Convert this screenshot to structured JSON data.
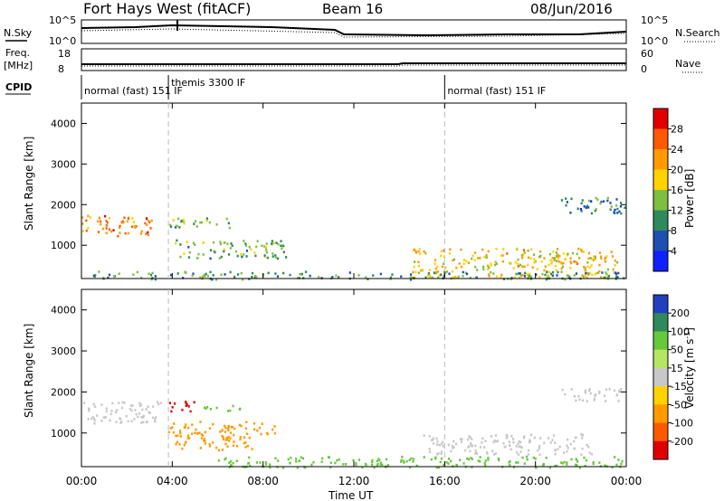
{
  "header": {
    "title": "Fort Hays West (fitACF)",
    "beam": "Beam 16",
    "date": "08/Jun/2016"
  },
  "top_panels": {
    "nsky_label": "N.Sky",
    "nsearch_label": "N.Search",
    "noise_ticks_left": [
      "10^5",
      "10^0"
    ],
    "noise_ticks_right": [
      "10^5",
      "10^0"
    ],
    "freq_label": "Freq.",
    "freq_unit": "[MHz]",
    "freq_ticks": [
      "18",
      "8"
    ],
    "nave_label": "Nave",
    "nave_ticks": [
      "60",
      "0"
    ],
    "cpid_label": "CPID"
  },
  "cpid_segments": [
    {
      "label": "normal (fast) 151 IF",
      "start_hour": 0
    },
    {
      "label": "themis 3300 IF",
      "start_hour": 3.83
    },
    {
      "label": "normal (fast) 151 IF",
      "start_hour": 16
    }
  ],
  "power_panel": {
    "ylabel": "Slant Range [km]",
    "cbar_label": "Power [dB]",
    "cbar_ticks": [
      "28",
      "24",
      "20",
      "16",
      "12",
      "8",
      "4"
    ],
    "cbar_colors": [
      "#e00000",
      "#ff5a00",
      "#ff9a00",
      "#ffd200",
      "#7fbf40",
      "#2e8a5a",
      "#1e4fb4",
      "#1020ff"
    ]
  },
  "velocity_panel": {
    "ylabel": "Slant Range [km]",
    "cbar_label": "Velocity [m s",
    "cbar_label_sup": "-1",
    "cbar_label_end": "]",
    "cbar_ticks": [
      "200",
      "100",
      "50",
      "15",
      "-15",
      "-50",
      "-100",
      "-200"
    ],
    "cbar_colors": [
      "#2040c0",
      "#2e8a5a",
      "#66c83c",
      "#b4e664",
      "#c8c8c8",
      "#ffd200",
      "#ff9a00",
      "#ff5a00",
      "#e00000"
    ]
  },
  "xaxis": {
    "title": "Time UT",
    "ticks": [
      "00:00",
      "04:00",
      "08:00",
      "12:00",
      "16:00",
      "20:00",
      "00:00"
    ]
  },
  "chart_data": [
    {
      "type": "heatmap",
      "title": "Power",
      "xlabel": "Time UT",
      "ylabel": "Slant Range [km]",
      "xlim_hours": [
        0,
        24
      ],
      "ylim": [
        180,
        4500
      ],
      "yticks": [
        1000,
        2000,
        3000,
        4000
      ],
      "colorbar": {
        "label": "Power [dB]",
        "range": [
          0,
          30
        ]
      },
      "regions": [
        {
          "t0": 0.0,
          "t1": 3.2,
          "r0": 1250,
          "r1": 1750,
          "value": 22
        },
        {
          "t0": 3.8,
          "t1": 6.6,
          "r0": 1450,
          "r1": 1700,
          "value": 12
        },
        {
          "t0": 4.1,
          "t1": 9.0,
          "r0": 700,
          "r1": 1150,
          "value": 12
        },
        {
          "t0": 14.5,
          "t1": 23.6,
          "r0": 200,
          "r1": 950,
          "value": 18
        },
        {
          "t0": 0.5,
          "t1": 24,
          "r0": 180,
          "r1": 380,
          "value": 10
        },
        {
          "t0": 21.0,
          "t1": 24,
          "r0": 1800,
          "r1": 2200,
          "value": 8
        }
      ]
    },
    {
      "type": "heatmap",
      "title": "Velocity",
      "xlabel": "Time UT",
      "ylabel": "Slant Range [km]",
      "xlim_hours": [
        0,
        24
      ],
      "ylim": [
        180,
        4500
      ],
      "yticks": [
        1000,
        2000,
        3000,
        4000
      ],
      "colorbar": {
        "label": "Velocity [m s-1]",
        "range": [
          -200,
          200
        ]
      },
      "regions": [
        {
          "t0": 0.0,
          "t1": 3.5,
          "r0": 1250,
          "r1": 1800,
          "value": 0
        },
        {
          "t0": 3.8,
          "t1": 5.1,
          "r0": 1550,
          "r1": 1800,
          "value": -220
        },
        {
          "t0": 5.1,
          "t1": 7.0,
          "r0": 1550,
          "r1": 1700,
          "value": 60
        },
        {
          "t0": 3.8,
          "t1": 8.5,
          "r0": 950,
          "r1": 1300,
          "value": -60
        },
        {
          "t0": 4.0,
          "t1": 7.5,
          "r0": 600,
          "r1": 950,
          "value": -50
        },
        {
          "t0": 15.0,
          "t1": 22.5,
          "r0": 500,
          "r1": 1000,
          "value": 0
        },
        {
          "t0": 6.0,
          "t1": 24,
          "r0": 180,
          "r1": 450,
          "value": 40
        },
        {
          "t0": 21.0,
          "t1": 24,
          "r0": 1800,
          "r1": 2100,
          "value": 0
        }
      ]
    }
  ]
}
